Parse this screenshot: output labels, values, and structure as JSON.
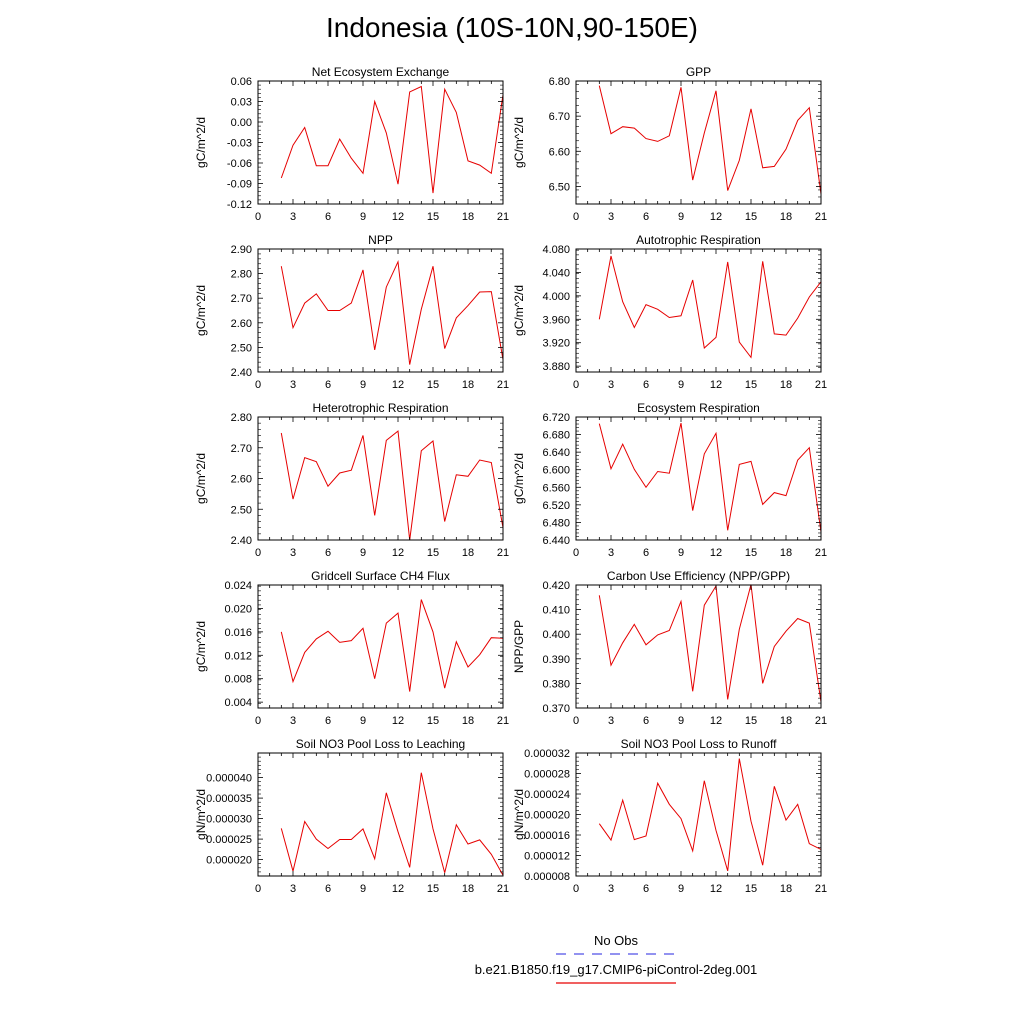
{
  "title": "Indonesia (10S-10N,90-150E)",
  "colors": {
    "model": "#e60000",
    "obs": "#5050e6",
    "axis": "#000000"
  },
  "legend": {
    "obs_label": "No Obs",
    "model_label": "b.e21.B1850.f19_g17.CMIP6-piControl-2deg.001"
  },
  "chart_data": [
    {
      "type": "line",
      "title": "Net Ecosystem Exchange",
      "ylabel": "gC/m^2/d",
      "xlim": [
        0,
        21
      ],
      "xticks": [
        0,
        3,
        6,
        9,
        12,
        15,
        18,
        21
      ],
      "ylim": [
        -0.12,
        0.06
      ],
      "yticks": [
        "-0.12",
        "-0.09",
        "-0.06",
        "-0.03",
        "0.00",
        "0.03",
        "0.06"
      ],
      "x": [
        2,
        3,
        4,
        5,
        6,
        7,
        8,
        9,
        10,
        11,
        12,
        13,
        14,
        15,
        16,
        17,
        18,
        19,
        20,
        21
      ],
      "series": [
        {
          "name": "b.e21.B1850.f19_g17.CMIP6-piControl-2deg.001",
          "values": [
            -0.082,
            -0.034,
            -0.008,
            -0.064,
            -0.064,
            -0.025,
            -0.053,
            -0.075,
            0.03,
            -0.016,
            -0.091,
            0.044,
            0.052,
            -0.104,
            0.048,
            0.014,
            -0.057,
            -0.063,
            -0.075,
            0.04
          ]
        }
      ]
    },
    {
      "type": "line",
      "title": "GPP",
      "ylabel": "gC/m^2/d",
      "xlim": [
        0,
        21
      ],
      "xticks": [
        0,
        3,
        6,
        9,
        12,
        15,
        18,
        21
      ],
      "ylim": [
        6.45,
        6.8
      ],
      "yticks": [
        "6.50",
        "6.60",
        "6.70",
        "6.80"
      ],
      "x": [
        2,
        3,
        4,
        5,
        6,
        7,
        8,
        9,
        10,
        11,
        12,
        13,
        14,
        15,
        16,
        17,
        18,
        19,
        20,
        21
      ],
      "series": [
        {
          "name": "b.e21.B1850.f19_g17.CMIP6-piControl-2deg.001",
          "values": [
            6.787,
            6.65,
            6.67,
            6.666,
            6.636,
            6.628,
            6.644,
            6.782,
            6.518,
            6.652,
            6.772,
            6.488,
            6.574,
            6.721,
            6.553,
            6.557,
            6.606,
            6.688,
            6.724,
            6.478
          ]
        }
      ]
    },
    {
      "type": "line",
      "title": "NPP",
      "ylabel": "gC/m^2/d",
      "xlim": [
        0,
        21
      ],
      "xticks": [
        0,
        3,
        6,
        9,
        12,
        15,
        18,
        21
      ],
      "ylim": [
        2.4,
        2.9
      ],
      "yticks": [
        "2.40",
        "2.50",
        "2.60",
        "2.70",
        "2.80",
        "2.90"
      ],
      "x": [
        2,
        3,
        4,
        5,
        6,
        7,
        8,
        9,
        10,
        11,
        12,
        13,
        14,
        15,
        16,
        17,
        18,
        19,
        20,
        21
      ],
      "series": [
        {
          "name": "b.e21.B1850.f19_g17.CMIP6-piControl-2deg.001",
          "values": [
            2.83,
            2.58,
            2.68,
            2.718,
            2.65,
            2.65,
            2.68,
            2.815,
            2.49,
            2.745,
            2.848,
            2.43,
            2.655,
            2.83,
            2.495,
            2.62,
            2.67,
            2.725,
            2.727,
            2.45
          ]
        }
      ]
    },
    {
      "type": "line",
      "title": "Autotrophic Respiration",
      "ylabel": "gC/m^2/d",
      "xlim": [
        0,
        21
      ],
      "xticks": [
        0,
        3,
        6,
        9,
        12,
        15,
        18,
        21
      ],
      "ylim": [
        3.87,
        4.08
      ],
      "yticks": [
        "3.880",
        "3.920",
        "3.960",
        "4.000",
        "4.040",
        "4.080"
      ],
      "x": [
        2,
        3,
        4,
        5,
        6,
        7,
        8,
        9,
        10,
        11,
        12,
        13,
        14,
        15,
        16,
        17,
        18,
        19,
        20,
        21
      ],
      "series": [
        {
          "name": "b.e21.B1850.f19_g17.CMIP6-piControl-2deg.001",
          "values": [
            3.96,
            4.068,
            3.99,
            3.946,
            3.985,
            3.977,
            3.963,
            3.966,
            4.027,
            3.911,
            3.929,
            4.058,
            3.921,
            3.895,
            4.059,
            3.935,
            3.933,
            3.962,
            3.998,
            4.024
          ]
        }
      ]
    },
    {
      "type": "line",
      "title": "Heterotrophic Respiration",
      "ylabel": "gC/m^2/d",
      "xlim": [
        0,
        21
      ],
      "xticks": [
        0,
        3,
        6,
        9,
        12,
        15,
        18,
        21
      ],
      "ylim": [
        2.4,
        2.8
      ],
      "yticks": [
        "2.40",
        "2.50",
        "2.60",
        "2.70",
        "2.80"
      ],
      "x": [
        2,
        3,
        4,
        5,
        6,
        7,
        8,
        9,
        10,
        11,
        12,
        13,
        14,
        15,
        16,
        17,
        18,
        19,
        20,
        21
      ],
      "series": [
        {
          "name": "b.e21.B1850.f19_g17.CMIP6-piControl-2deg.001",
          "values": [
            2.748,
            2.533,
            2.668,
            2.655,
            2.575,
            2.618,
            2.627,
            2.74,
            2.48,
            2.724,
            2.754,
            2.4,
            2.69,
            2.722,
            2.46,
            2.612,
            2.607,
            2.66,
            2.652,
            2.44
          ]
        }
      ]
    },
    {
      "type": "line",
      "title": "Ecosystem Respiration",
      "ylabel": "gC/m^2/d",
      "xlim": [
        0,
        21
      ],
      "xticks": [
        0,
        3,
        6,
        9,
        12,
        15,
        18,
        21
      ],
      "ylim": [
        6.44,
        6.72
      ],
      "yticks": [
        "6.440",
        "6.480",
        "6.520",
        "6.560",
        "6.600",
        "6.640",
        "6.680",
        "6.720"
      ],
      "x": [
        2,
        3,
        4,
        5,
        6,
        7,
        8,
        9,
        10,
        11,
        12,
        13,
        14,
        15,
        16,
        17,
        18,
        19,
        20,
        21
      ],
      "series": [
        {
          "name": "b.e21.B1850.f19_g17.CMIP6-piControl-2deg.001",
          "values": [
            6.705,
            6.602,
            6.658,
            6.601,
            6.56,
            6.596,
            6.592,
            6.706,
            6.507,
            6.636,
            6.683,
            6.462,
            6.612,
            6.619,
            6.521,
            6.548,
            6.541,
            6.622,
            6.65,
            6.458
          ]
        }
      ]
    },
    {
      "type": "line",
      "title": "Gridcell Surface CH4 Flux",
      "ylabel": "gC/m^2/d",
      "xlim": [
        0,
        21
      ],
      "xticks": [
        0,
        3,
        6,
        9,
        12,
        15,
        18,
        21
      ],
      "ylim": [
        0.003,
        0.024
      ],
      "yticks": [
        "0.004",
        "0.008",
        "0.012",
        "0.016",
        "0.020",
        "0.024"
      ],
      "x": [
        2,
        3,
        4,
        5,
        6,
        7,
        8,
        9,
        10,
        11,
        12,
        13,
        14,
        15,
        16,
        17,
        18,
        19,
        20,
        21
      ],
      "series": [
        {
          "name": "b.e21.B1850.f19_g17.CMIP6-piControl-2deg.001",
          "values": [
            0.016,
            0.0075,
            0.0125,
            0.0148,
            0.0161,
            0.0142,
            0.0145,
            0.0166,
            0.008,
            0.0175,
            0.0192,
            0.0058,
            0.0215,
            0.016,
            0.0064,
            0.0143,
            0.01,
            0.0121,
            0.015,
            0.0149
          ]
        }
      ]
    },
    {
      "type": "line",
      "title": "Carbon Use Efficiency (NPP/GPP)",
      "ylabel": "NPP/GPP",
      "xlim": [
        0,
        21
      ],
      "xticks": [
        0,
        3,
        6,
        9,
        12,
        15,
        18,
        21
      ],
      "ylim": [
        0.37,
        0.42
      ],
      "yticks": [
        "0.370",
        "0.380",
        "0.390",
        "0.400",
        "0.410",
        "0.420"
      ],
      "x": [
        2,
        3,
        4,
        5,
        6,
        7,
        8,
        9,
        10,
        11,
        12,
        13,
        14,
        15,
        16,
        17,
        18,
        19,
        20,
        21
      ],
      "series": [
        {
          "name": "b.e21.B1850.f19_g17.CMIP6-piControl-2deg.001",
          "values": [
            0.4158,
            0.3874,
            0.3965,
            0.404,
            0.3957,
            0.3997,
            0.4015,
            0.4133,
            0.3768,
            0.4118,
            0.4196,
            0.3735,
            0.402,
            0.4202,
            0.38,
            0.395,
            0.4012,
            0.4064,
            0.4045,
            0.3725
          ]
        }
      ]
    },
    {
      "type": "line",
      "title": "Soil NO3 Pool Loss to Leaching",
      "ylabel": "gN/m^2/d",
      "xlim": [
        0,
        21
      ],
      "xticks": [
        0,
        3,
        6,
        9,
        12,
        15,
        18,
        21
      ],
      "ylim": [
        1.6e-05,
        4.6e-05
      ],
      "yticks": [
        "0.000020",
        "0.000025",
        "0.000030",
        "0.000035",
        "0.000040"
      ],
      "x": [
        2,
        3,
        4,
        5,
        6,
        7,
        8,
        9,
        10,
        11,
        12,
        13,
        14,
        15,
        16,
        17,
        18,
        19,
        20,
        21
      ],
      "series": [
        {
          "name": "b.e21.B1850.f19_g17.CMIP6-piControl-2deg.001",
          "values": [
            2.76e-05,
            1.72e-05,
            2.93e-05,
            2.5e-05,
            2.27e-05,
            2.49e-05,
            2.49e-05,
            2.75e-05,
            2.02e-05,
            3.63e-05,
            2.68e-05,
            1.81e-05,
            4.12e-05,
            2.75e-05,
            1.68e-05,
            2.85e-05,
            2.38e-05,
            2.48e-05,
            2.13e-05,
            1.62e-05
          ]
        }
      ]
    },
    {
      "type": "line",
      "title": "Soil NO3 Pool Loss to Runoff",
      "ylabel": "gN/m^2/d",
      "xlim": [
        0,
        21
      ],
      "xticks": [
        0,
        3,
        6,
        9,
        12,
        15,
        18,
        21
      ],
      "ylim": [
        8e-06,
        3.2e-05
      ],
      "yticks": [
        "0.000008",
        "0.000012",
        "0.000016",
        "0.000020",
        "0.000024",
        "0.000028",
        "0.000032"
      ],
      "x": [
        2,
        3,
        4,
        5,
        6,
        7,
        8,
        9,
        10,
        11,
        12,
        13,
        14,
        15,
        16,
        17,
        18,
        19,
        20,
        21
      ],
      "series": [
        {
          "name": "b.e21.B1850.f19_g17.CMIP6-piControl-2deg.001",
          "values": [
            1.82e-05,
            1.5e-05,
            2.28e-05,
            1.51e-05,
            1.58e-05,
            2.61e-05,
            2.2e-05,
            1.92e-05,
            1.29e-05,
            2.66e-05,
            1.69e-05,
            9e-06,
            3.09e-05,
            1.87e-05,
            1.01e-05,
            2.55e-05,
            1.89e-05,
            2.2e-05,
            1.43e-05,
            1.32e-05
          ]
        }
      ]
    }
  ]
}
